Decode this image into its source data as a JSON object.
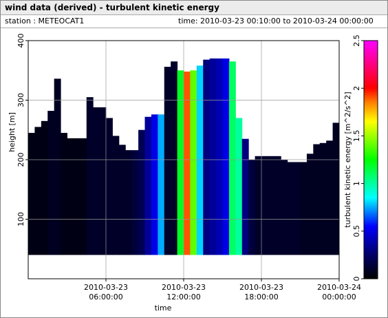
{
  "header": {
    "title": "wind data (derived) - turbulent kinetic energy",
    "station": "station : METEOCAT1",
    "time": "time: 2010-03-23 00:10:00 to 2010-03-24 00:00:00"
  },
  "chart_data": {
    "type": "heatmap",
    "xlabel": "time",
    "ylabel": "height [m]",
    "colorbar_label": "turbulent kinetic energy [m^2/s^2]",
    "x": [
      "2010-03-23T00:00:00",
      "2010-03-23T00:30:00",
      "2010-03-23T01:00:00",
      "2010-03-23T01:30:00",
      "2010-03-23T02:00:00",
      "2010-03-23T02:30:00",
      "2010-03-23T03:00:00",
      "2010-03-23T03:30:00",
      "2010-03-23T04:00:00",
      "2010-03-23T04:30:00",
      "2010-03-23T05:00:00",
      "2010-03-23T05:30:00",
      "2010-03-23T06:00:00",
      "2010-03-23T06:30:00",
      "2010-03-23T07:00:00",
      "2010-03-23T07:30:00",
      "2010-03-23T08:00:00",
      "2010-03-23T08:30:00",
      "2010-03-23T09:00:00",
      "2010-03-23T09:30:00",
      "2010-03-23T10:00:00",
      "2010-03-23T10:30:00",
      "2010-03-23T11:00:00",
      "2010-03-23T11:30:00",
      "2010-03-23T12:00:00",
      "2010-03-23T12:30:00",
      "2010-03-23T13:00:00",
      "2010-03-23T13:30:00",
      "2010-03-23T14:00:00",
      "2010-03-23T14:30:00",
      "2010-03-23T15:00:00",
      "2010-03-23T15:30:00",
      "2010-03-23T16:00:00",
      "2010-03-23T16:30:00",
      "2010-03-23T17:00:00",
      "2010-03-23T17:30:00",
      "2010-03-23T18:00:00",
      "2010-03-23T18:30:00",
      "2010-03-23T19:00:00",
      "2010-03-23T19:30:00",
      "2010-03-23T20:00:00",
      "2010-03-23T20:30:00",
      "2010-03-23T21:00:00",
      "2010-03-23T21:30:00",
      "2010-03-23T22:00:00",
      "2010-03-23T22:30:00",
      "2010-03-23T23:00:00",
      "2010-03-23T23:30:00"
    ],
    "tops": [
      245,
      255,
      265,
      282,
      336,
      245,
      236,
      236,
      236,
      305,
      288,
      288,
      270,
      240,
      225,
      216,
      216,
      250,
      272,
      276,
      276,
      356,
      365,
      350,
      348,
      350,
      358,
      368,
      370,
      370,
      370,
      365,
      270,
      235,
      200,
      206,
      206,
      206,
      206,
      200,
      196,
      196,
      196,
      210,
      226,
      228,
      232,
      262
    ],
    "values": [
      0.05,
      0.05,
      0.05,
      0.08,
      0.08,
      0.05,
      0.05,
      0.05,
      0.05,
      0.1,
      0.1,
      0.1,
      0.1,
      0.1,
      0.1,
      0.1,
      0.15,
      0.2,
      0.35,
      0.5,
      0.75,
      0.1,
      0.1,
      1.2,
      1.9,
      1.4,
      0.8,
      0.3,
      0.35,
      0.4,
      0.5,
      1.1,
      1.0,
      0.3,
      0.15,
      0.1,
      0.1,
      0.1,
      0.1,
      0.1,
      0.1,
      0.1,
      0.08,
      0.08,
      0.08,
      0.08,
      0.08,
      0.08
    ],
    "data_bottom": 40,
    "xlim": [
      "2010-03-23T00:00:00",
      "2010-03-24T00:00:00"
    ],
    "xticks": [
      {
        "value": "2010-03-23T06:00:00",
        "label": "2010-03-23 06:00:00"
      },
      {
        "value": "2010-03-23T12:00:00",
        "label": "2010-03-23 12:00:00"
      },
      {
        "value": "2010-03-23T18:00:00",
        "label": "2010-03-23 18:00:00"
      },
      {
        "value": "2010-03-24T00:00:00",
        "label": "2010-03-24 00:00:00"
      }
    ],
    "ylim": [
      0,
      400
    ],
    "yticks": [
      100,
      200,
      300,
      400
    ],
    "clim": [
      0,
      2.5
    ],
    "cticks": [
      0,
      0.5,
      1,
      1.5,
      2,
      2.5
    ],
    "colormap": [
      [
        0,
        "#000000"
      ],
      [
        0.1,
        "#000066"
      ],
      [
        0.22,
        "#0000ff"
      ],
      [
        0.34,
        "#00ffff"
      ],
      [
        0.5,
        "#00ff00"
      ],
      [
        0.66,
        "#ffff00"
      ],
      [
        0.74,
        "#ff8000"
      ],
      [
        0.8,
        "#ff0000"
      ],
      [
        1,
        "#ff00ff"
      ]
    ],
    "grid": true
  }
}
